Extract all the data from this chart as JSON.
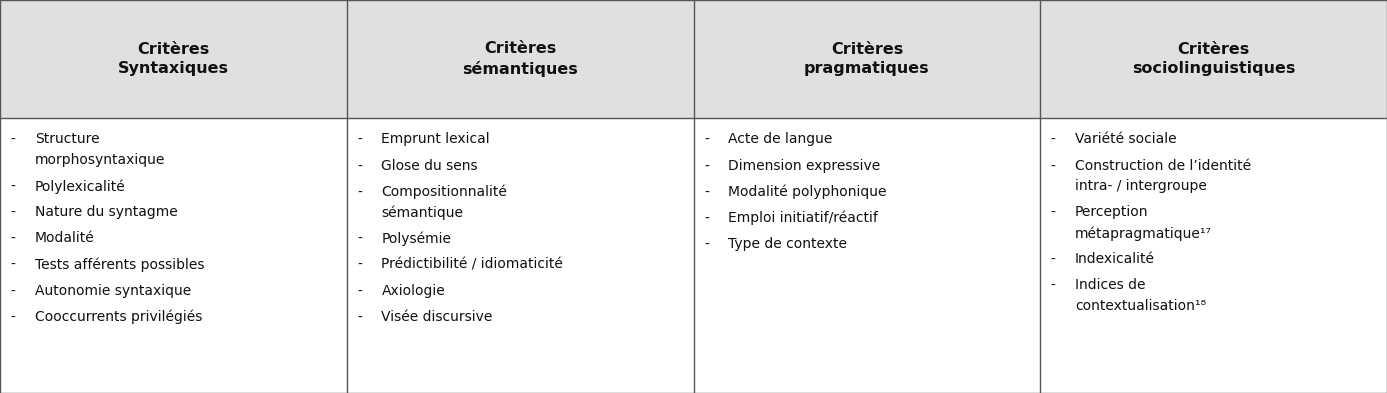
{
  "headers": [
    "Critères\nSyntaxiques",
    "Critères\nsémantiques",
    "Critères\npragmatiques",
    "Critères\nsociolinguistiques"
  ],
  "col_items": [
    [
      [
        "- ",
        "Structure\nmorphosyntaxique"
      ],
      [
        "- ",
        "Polylexicalité"
      ],
      [
        "- ",
        "Nature du syntagme"
      ],
      [
        "- ",
        "Modalité"
      ],
      [
        "- ",
        "Tests afférents possibles"
      ],
      [
        "- ",
        "Autonomie syntaxique"
      ],
      [
        "- ",
        "Cooccurrents privilégiés"
      ]
    ],
    [
      [
        "- ",
        "Emprunt lexical"
      ],
      [
        "- ",
        "Glose du sens"
      ],
      [
        "- ",
        "Compositionnalité\nsémantique"
      ],
      [
        "- ",
        "Polysémie"
      ],
      [
        "- ",
        "Prédictibilité / idiomaticité"
      ],
      [
        "- ",
        "Axiologie"
      ],
      [
        "- ",
        "Visée discursive"
      ]
    ],
    [
      [
        "- ",
        "Acte de langue"
      ],
      [
        "- ",
        "Dimension expressive"
      ],
      [
        "- ",
        "Modalité polyphonique"
      ],
      [
        "- ",
        "Emploi initiatif/réactif"
      ],
      [
        "- ",
        "Type de contexte"
      ]
    ],
    [
      [
        "- ",
        "Variété sociale"
      ],
      [
        "- ",
        "Construction de l’identité\nintra- / intergroupe"
      ],
      [
        "- ",
        "Perception\nmétapragmatique¹⁷"
      ],
      [
        "- ",
        "Indexicalité"
      ],
      [
        "- ",
        "Indices de\ncontextualisation¹⁸"
      ]
    ]
  ],
  "header_bg": "#e0e0e0",
  "body_bg": "#ffffff",
  "border_color": "#555555",
  "header_fontsize": 11.5,
  "body_fontsize": 10,
  "fig_width": 13.87,
  "fig_height": 3.93,
  "dpi": 100
}
